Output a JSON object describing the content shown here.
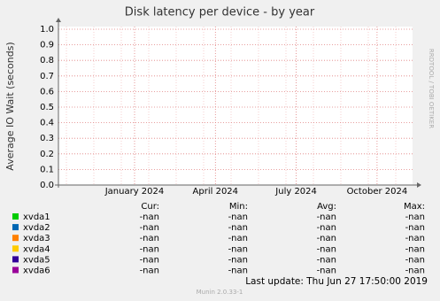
{
  "chart_data": {
    "type": "line",
    "title": "Disk latency per device - by year",
    "ylabel": "Average IO Wait (seconds)",
    "ylim": [
      0,
      1
    ],
    "yticks": [
      {
        "value": 0,
        "label": "0.0"
      },
      0.1,
      0.2,
      0.3,
      0.4,
      0.5,
      0.6,
      0.7,
      0.8,
      0.9,
      {
        "value": 1,
        "label": "1.0"
      }
    ],
    "xticks": [
      "January 2024",
      "April 2024",
      "July 2024",
      "October 2024"
    ],
    "grid": true,
    "watermark": "RRDTOOL / TOBI OETIKER",
    "legend_headers": [
      "Cur:",
      "Min:",
      "Avg:",
      "Max:"
    ],
    "series": [
      {
        "name": "xvda1",
        "color": "#00cc00",
        "stats": [
          "-nan",
          "-nan",
          "-nan",
          "-nan"
        ]
      },
      {
        "name": "xvda2",
        "color": "#0066b3",
        "stats": [
          "-nan",
          "-nan",
          "-nan",
          "-nan"
        ]
      },
      {
        "name": "xvda3",
        "color": "#ff8000",
        "stats": [
          "-nan",
          "-nan",
          "-nan",
          "-nan"
        ]
      },
      {
        "name": "xvda4",
        "color": "#ffcc00",
        "stats": [
          "-nan",
          "-nan",
          "-nan",
          "-nan"
        ]
      },
      {
        "name": "xvda5",
        "color": "#330099",
        "stats": [
          "-nan",
          "-nan",
          "-nan",
          "-nan"
        ]
      },
      {
        "name": "xvda6",
        "color": "#990099",
        "stats": [
          "-nan",
          "-nan",
          "-nan",
          "-nan"
        ]
      }
    ],
    "last_update": "Last update:  Thu Jun 27 17:50:00 2019",
    "footer": "Munin 2.0.33-1"
  }
}
